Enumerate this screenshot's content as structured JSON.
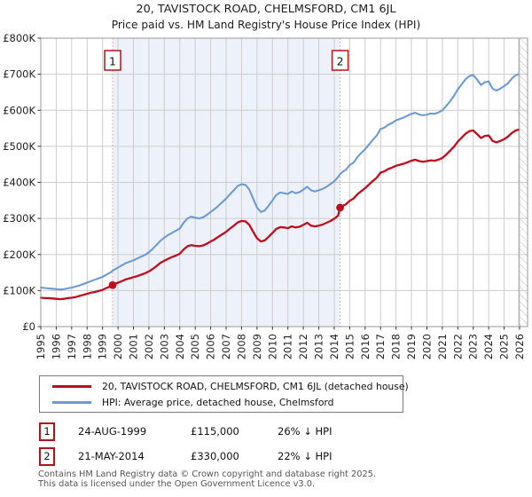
{
  "title": "20, TAVISTOCK ROAD, CHELMSFORD, CM1 6JL",
  "subtitle": "Price paid vs. HM Land Registry's House Price Index (HPI)",
  "legend": [
    {
      "label": "20, TAVISTOCK ROAD, CHELMSFORD, CM1 6JL (detached house)",
      "color": "#c00c1c"
    },
    {
      "label": "HPI: Average price, detached house, Chelmsford",
      "color": "#6c9bd2"
    }
  ],
  "annotations": [
    {
      "num": "1",
      "date": "24-AUG-1999",
      "price": "£115,000",
      "hpi": "26% ↓ HPI"
    },
    {
      "num": "2",
      "date": "21-MAY-2014",
      "price": "£330,000",
      "hpi": "22% ↓ HPI"
    }
  ],
  "footer": {
    "line1": "Contains HM Land Registry data © Crown copyright and database right 2025.",
    "line2": "This data is licensed under the Open Government Licence v3.0."
  },
  "chart_data": {
    "type": "line",
    "units": "GBP_thousands",
    "ylim_k": [
      0,
      800
    ],
    "y_tick_labels": [
      "£0",
      "£100K",
      "£200K",
      "£300K",
      "£400K",
      "£500K",
      "£600K",
      "£700K",
      "£800K"
    ],
    "x_ticks": [
      1995,
      1996,
      1997,
      1998,
      1999,
      2000,
      2001,
      2002,
      2003,
      2004,
      2005,
      2006,
      2007,
      2008,
      2009,
      2010,
      2011,
      2012,
      2013,
      2014,
      2015,
      2016,
      2017,
      2018,
      2019,
      2020,
      2021,
      2022,
      2023,
      2024,
      2025,
      2026
    ],
    "grid_color": "#cccccc",
    "frame_color": "#9a9a9a",
    "shade_color": "#edf2fa",
    "dashed_line_color": "#ee8a8a",
    "hatch_color": "#bbbbbb",
    "shade_between_years": [
      1999.65,
      2014.38
    ],
    "hatch_from_year": 2025.95,
    "sales": [
      {
        "marker": "1",
        "date": "24-AUG-1999",
        "year": 1999.65,
        "price_gbp": 115000,
        "vs_hpi": "26% below HPI"
      },
      {
        "marker": "2",
        "date": "21-MAY-2014",
        "year": 2014.38,
        "price_gbp": 330000,
        "vs_hpi": "22% below HPI"
      }
    ],
    "series": [
      {
        "name": "20, TAVISTOCK ROAD, CHELMSFORD, CM1 6JL (detached house)",
        "color": "#c00c1c",
        "width": 2.3,
        "points": [
          [
            1995,
            80
          ],
          [
            1995.25,
            79
          ],
          [
            1995.5,
            79
          ],
          [
            1995.75,
            78
          ],
          [
            1996,
            77
          ],
          [
            1996.25,
            76
          ],
          [
            1996.5,
            77
          ],
          [
            1996.75,
            79
          ],
          [
            1997,
            80
          ],
          [
            1997.25,
            82
          ],
          [
            1997.5,
            85
          ],
          [
            1997.75,
            88
          ],
          [
            1998,
            91
          ],
          [
            1998.25,
            94
          ],
          [
            1998.5,
            96
          ],
          [
            1998.75,
            99
          ],
          [
            1999,
            102
          ],
          [
            1999.25,
            107
          ],
          [
            1999.5,
            111
          ],
          [
            1999.65,
            115
          ],
          [
            2000,
            122
          ],
          [
            2000.25,
            126
          ],
          [
            2000.5,
            131
          ],
          [
            2000.75,
            134
          ],
          [
            2001,
            137
          ],
          [
            2001.25,
            140
          ],
          [
            2001.5,
            144
          ],
          [
            2001.75,
            148
          ],
          [
            2002,
            153
          ],
          [
            2002.25,
            160
          ],
          [
            2002.5,
            168
          ],
          [
            2002.75,
            177
          ],
          [
            2003,
            183
          ],
          [
            2003.25,
            188
          ],
          [
            2003.5,
            193
          ],
          [
            2003.75,
            197
          ],
          [
            2004,
            202
          ],
          [
            2004.25,
            214
          ],
          [
            2004.5,
            223
          ],
          [
            2004.75,
            226
          ],
          [
            2005,
            224
          ],
          [
            2005.25,
            223
          ],
          [
            2005.5,
            225
          ],
          [
            2005.75,
            230
          ],
          [
            2006,
            236
          ],
          [
            2006.25,
            242
          ],
          [
            2006.5,
            249
          ],
          [
            2006.75,
            256
          ],
          [
            2007,
            263
          ],
          [
            2007.25,
            272
          ],
          [
            2007.5,
            280
          ],
          [
            2007.75,
            289
          ],
          [
            2008,
            293
          ],
          [
            2008.25,
            292
          ],
          [
            2008.5,
            282
          ],
          [
            2008.75,
            263
          ],
          [
            2009,
            245
          ],
          [
            2009.25,
            236
          ],
          [
            2009.5,
            239
          ],
          [
            2009.75,
            249
          ],
          [
            2010,
            260
          ],
          [
            2010.25,
            271
          ],
          [
            2010.5,
            276
          ],
          [
            2010.75,
            275
          ],
          [
            2011,
            273
          ],
          [
            2011.25,
            278
          ],
          [
            2011.5,
            275
          ],
          [
            2011.75,
            277
          ],
          [
            2012,
            282
          ],
          [
            2012.25,
            288
          ],
          [
            2012.5,
            280
          ],
          [
            2012.75,
            278
          ],
          [
            2013,
            280
          ],
          [
            2013.25,
            283
          ],
          [
            2013.5,
            288
          ],
          [
            2013.75,
            293
          ],
          [
            2014,
            299
          ],
          [
            2014.25,
            308
          ],
          [
            2014.38,
            330
          ],
          [
            2014.5,
            334
          ],
          [
            2014.75,
            339
          ],
          [
            2015,
            349
          ],
          [
            2015.25,
            355
          ],
          [
            2015.5,
            367
          ],
          [
            2015.75,
            376
          ],
          [
            2016,
            384
          ],
          [
            2016.25,
            394
          ],
          [
            2016.5,
            404
          ],
          [
            2016.75,
            413
          ],
          [
            2017,
            427
          ],
          [
            2017.25,
            431
          ],
          [
            2017.5,
            437
          ],
          [
            2017.75,
            441
          ],
          [
            2018,
            446
          ],
          [
            2018.25,
            449
          ],
          [
            2018.5,
            452
          ],
          [
            2018.75,
            456
          ],
          [
            2019,
            460
          ],
          [
            2019.25,
            463
          ],
          [
            2019.5,
            459
          ],
          [
            2019.75,
            457
          ],
          [
            2020,
            459
          ],
          [
            2020.25,
            461
          ],
          [
            2020.5,
            460
          ],
          [
            2020.75,
            463
          ],
          [
            2021,
            468
          ],
          [
            2021.25,
            477
          ],
          [
            2021.5,
            488
          ],
          [
            2021.75,
            499
          ],
          [
            2022,
            513
          ],
          [
            2022.25,
            524
          ],
          [
            2022.5,
            535
          ],
          [
            2022.75,
            542
          ],
          [
            2023,
            544
          ],
          [
            2023.25,
            534
          ],
          [
            2023.5,
            523
          ],
          [
            2023.75,
            529
          ],
          [
            2024,
            530
          ],
          [
            2024.25,
            515
          ],
          [
            2024.5,
            511
          ],
          [
            2024.75,
            515
          ],
          [
            2025,
            520
          ],
          [
            2025.25,
            527
          ],
          [
            2025.5,
            537
          ],
          [
            2025.75,
            544
          ],
          [
            2025.92,
            546
          ]
        ]
      },
      {
        "name": "HPI: Average price, detached house, Chelmsford",
        "color": "#6c9bd2",
        "width": 2.1,
        "points": [
          [
            1995,
            108
          ],
          [
            1995.25,
            107
          ],
          [
            1995.5,
            106
          ],
          [
            1995.75,
            105
          ],
          [
            1996,
            104
          ],
          [
            1996.25,
            103
          ],
          [
            1996.5,
            104
          ],
          [
            1996.75,
            106
          ],
          [
            1997,
            108
          ],
          [
            1997.25,
            111
          ],
          [
            1997.5,
            114
          ],
          [
            1997.75,
            118
          ],
          [
            1998,
            122
          ],
          [
            1998.25,
            126
          ],
          [
            1998.5,
            130
          ],
          [
            1998.75,
            134
          ],
          [
            1999,
            138
          ],
          [
            1999.25,
            144
          ],
          [
            1999.5,
            150
          ],
          [
            1999.65,
            155
          ],
          [
            2000,
            164
          ],
          [
            2000.25,
            170
          ],
          [
            2000.5,
            176
          ],
          [
            2000.75,
            180
          ],
          [
            2001,
            184
          ],
          [
            2001.25,
            189
          ],
          [
            2001.5,
            194
          ],
          [
            2001.75,
            199
          ],
          [
            2002,
            206
          ],
          [
            2002.25,
            216
          ],
          [
            2002.5,
            227
          ],
          [
            2002.75,
            238
          ],
          [
            2003,
            247
          ],
          [
            2003.25,
            254
          ],
          [
            2003.5,
            260
          ],
          [
            2003.75,
            266
          ],
          [
            2004,
            272
          ],
          [
            2004.25,
            288
          ],
          [
            2004.5,
            300
          ],
          [
            2004.75,
            305
          ],
          [
            2005,
            302
          ],
          [
            2005.25,
            300
          ],
          [
            2005.5,
            303
          ],
          [
            2005.75,
            310
          ],
          [
            2006,
            318
          ],
          [
            2006.25,
            326
          ],
          [
            2006.5,
            335
          ],
          [
            2006.75,
            345
          ],
          [
            2007,
            355
          ],
          [
            2007.25,
            367
          ],
          [
            2007.5,
            378
          ],
          [
            2007.75,
            390
          ],
          [
            2008,
            395
          ],
          [
            2008.25,
            393
          ],
          [
            2008.5,
            380
          ],
          [
            2008.75,
            355
          ],
          [
            2009,
            330
          ],
          [
            2009.25,
            318
          ],
          [
            2009.5,
            322
          ],
          [
            2009.75,
            335
          ],
          [
            2010,
            350
          ],
          [
            2010.25,
            365
          ],
          [
            2010.5,
            372
          ],
          [
            2010.75,
            370
          ],
          [
            2011,
            368
          ],
          [
            2011.25,
            375
          ],
          [
            2011.5,
            370
          ],
          [
            2011.75,
            373
          ],
          [
            2012,
            380
          ],
          [
            2012.25,
            388
          ],
          [
            2012.5,
            378
          ],
          [
            2012.75,
            375
          ],
          [
            2013,
            378
          ],
          [
            2013.25,
            382
          ],
          [
            2013.5,
            388
          ],
          [
            2013.75,
            395
          ],
          [
            2014,
            403
          ],
          [
            2014.25,
            415
          ],
          [
            2014.38,
            423
          ],
          [
            2014.5,
            428
          ],
          [
            2014.75,
            435
          ],
          [
            2015,
            448
          ],
          [
            2015.25,
            455
          ],
          [
            2015.5,
            470
          ],
          [
            2015.75,
            482
          ],
          [
            2016,
            492
          ],
          [
            2016.25,
            505
          ],
          [
            2016.5,
            518
          ],
          [
            2016.75,
            530
          ],
          [
            2017,
            548
          ],
          [
            2017.25,
            552
          ],
          [
            2017.5,
            560
          ],
          [
            2017.75,
            565
          ],
          [
            2018,
            572
          ],
          [
            2018.25,
            576
          ],
          [
            2018.5,
            580
          ],
          [
            2018.75,
            585
          ],
          [
            2019,
            590
          ],
          [
            2019.25,
            593
          ],
          [
            2019.5,
            588
          ],
          [
            2019.75,
            586
          ],
          [
            2020,
            588
          ],
          [
            2020.25,
            591
          ],
          [
            2020.5,
            590
          ],
          [
            2020.75,
            594
          ],
          [
            2021,
            600
          ],
          [
            2021.25,
            612
          ],
          [
            2021.5,
            625
          ],
          [
            2021.75,
            640
          ],
          [
            2022,
            658
          ],
          [
            2022.25,
            672
          ],
          [
            2022.5,
            686
          ],
          [
            2022.75,
            695
          ],
          [
            2023,
            698
          ],
          [
            2023.25,
            685
          ],
          [
            2023.5,
            670
          ],
          [
            2023.75,
            678
          ],
          [
            2024,
            680
          ],
          [
            2024.25,
            660
          ],
          [
            2024.5,
            655
          ],
          [
            2024.75,
            660
          ],
          [
            2025,
            667
          ],
          [
            2025.25,
            675
          ],
          [
            2025.5,
            688
          ],
          [
            2025.75,
            697
          ],
          [
            2025.92,
            700
          ]
        ]
      }
    ]
  }
}
